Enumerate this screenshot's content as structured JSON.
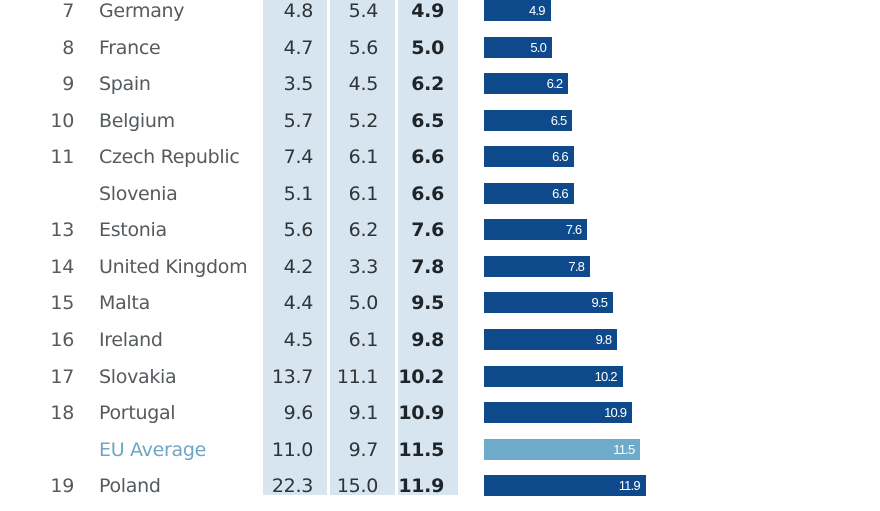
{
  "colors": {
    "bar": "#0e4a8b",
    "bar_average": "#6eaaca",
    "column_background": "#d6e5ef",
    "text": "#555a5e",
    "average_text": "#6ea6c6"
  },
  "chart_data": {
    "type": "bar",
    "orientation": "horizontal",
    "title": "",
    "xlabel": "",
    "ylabel": "",
    "columns": [
      "rank",
      "country",
      "value_1",
      "value_2",
      "value_3"
    ],
    "rows": [
      {
        "rank": "7",
        "country": "Germany",
        "value_1": "4.8",
        "value_2": "5.4",
        "value_3": "4.9",
        "bar": 4.9,
        "is_average": false
      },
      {
        "rank": "8",
        "country": "France",
        "value_1": "4.7",
        "value_2": "5.6",
        "value_3": "5.0",
        "bar": 5.0,
        "is_average": false
      },
      {
        "rank": "9",
        "country": "Spain",
        "value_1": "3.5",
        "value_2": "4.5",
        "value_3": "6.2",
        "bar": 6.2,
        "is_average": false
      },
      {
        "rank": "10",
        "country": "Belgium",
        "value_1": "5.7",
        "value_2": "5.2",
        "value_3": "6.5",
        "bar": 6.5,
        "is_average": false
      },
      {
        "rank": "11",
        "country": "Czech Republic",
        "value_1": "7.4",
        "value_2": "6.1",
        "value_3": "6.6",
        "bar": 6.6,
        "is_average": false
      },
      {
        "rank": "",
        "country": "Slovenia",
        "value_1": "5.1",
        "value_2": "6.1",
        "value_3": "6.6",
        "bar": 6.6,
        "is_average": false
      },
      {
        "rank": "13",
        "country": "Estonia",
        "value_1": "5.6",
        "value_2": "6.2",
        "value_3": "7.6",
        "bar": 7.6,
        "is_average": false
      },
      {
        "rank": "14",
        "country": "United Kingdom",
        "value_1": "4.2",
        "value_2": "3.3",
        "value_3": "7.8",
        "bar": 7.8,
        "is_average": false
      },
      {
        "rank": "15",
        "country": "Malta",
        "value_1": "4.4",
        "value_2": "5.0",
        "value_3": "9.5",
        "bar": 9.5,
        "is_average": false
      },
      {
        "rank": "16",
        "country": "Ireland",
        "value_1": "4.5",
        "value_2": "6.1",
        "value_3": "9.8",
        "bar": 9.8,
        "is_average": false
      },
      {
        "rank": "17",
        "country": "Slovakia",
        "value_1": "13.7",
        "value_2": "11.1",
        "value_3": "10.2",
        "bar": 10.2,
        "is_average": false
      },
      {
        "rank": "18",
        "country": "Portugal",
        "value_1": "9.6",
        "value_2": "9.1",
        "value_3": "10.9",
        "bar": 10.9,
        "is_average": false
      },
      {
        "rank": "",
        "country": "EU Average",
        "value_1": "11.0",
        "value_2": "9.7",
        "value_3": "11.5",
        "bar": 11.5,
        "is_average": true
      },
      {
        "rank": "19",
        "country": "Poland",
        "value_1": "22.3",
        "value_2": "15.0",
        "value_3": "11.9",
        "bar": 11.9,
        "is_average": false
      }
    ],
    "bar_labels": [
      "4.9",
      "5.0",
      "6.2",
      "6.5",
      "6.6",
      "6.6",
      "7.6",
      "7.8",
      "9.5",
      "9.8",
      "10.2",
      "10.9",
      "11.5",
      "11.9"
    ],
    "grid": false,
    "legend": "none"
  }
}
